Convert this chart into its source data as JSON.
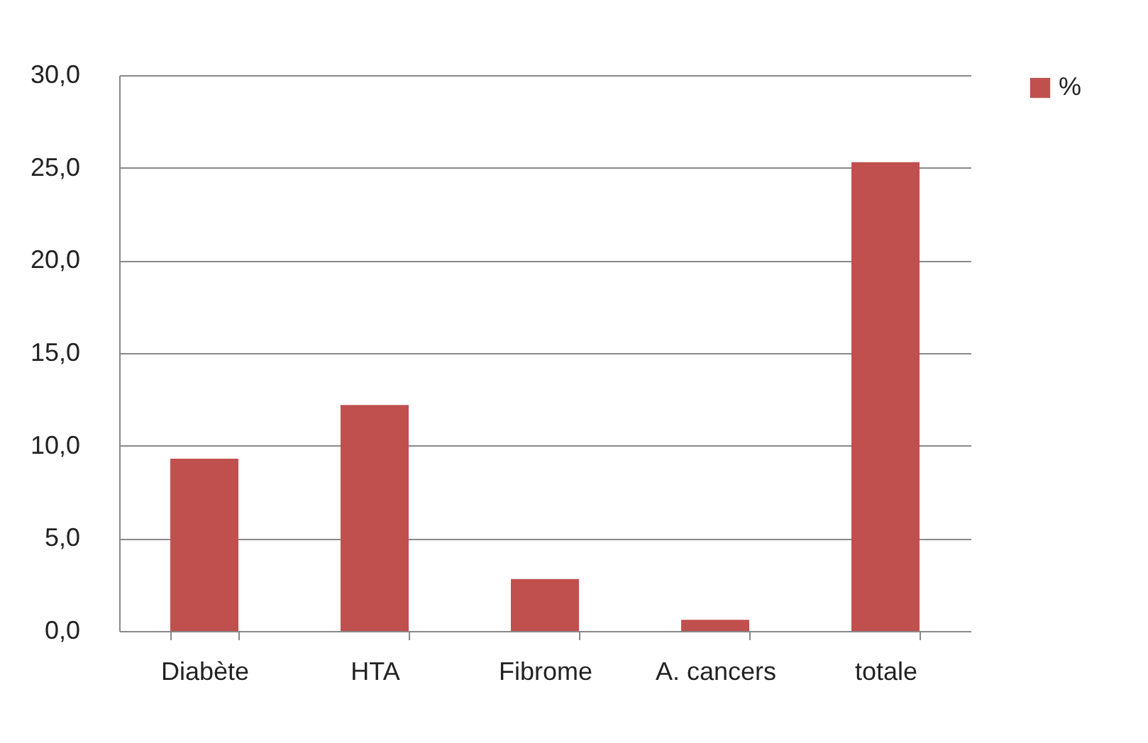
{
  "chart_data": {
    "type": "bar",
    "categories": [
      "Diabète",
      "HTA",
      "Fibrome",
      "A. cancers",
      "totale"
    ],
    "series": [
      {
        "name": "%",
        "color": "#c0504d",
        "values": [
          9.3,
          12.2,
          2.8,
          0.6,
          25.3
        ]
      }
    ],
    "ylim": [
      0,
      30
    ],
    "yticks": [
      {
        "value": 0,
        "label": "0,0"
      },
      {
        "value": 5,
        "label": "5,0"
      },
      {
        "value": 10,
        "label": "10,0"
      },
      {
        "value": 15,
        "label": "15,0"
      },
      {
        "value": 20,
        "label": "20,0"
      },
      {
        "value": 25,
        "label": "25,0"
      },
      {
        "value": 30,
        "label": "30,0"
      }
    ],
    "grid": "y",
    "legend": "right"
  }
}
